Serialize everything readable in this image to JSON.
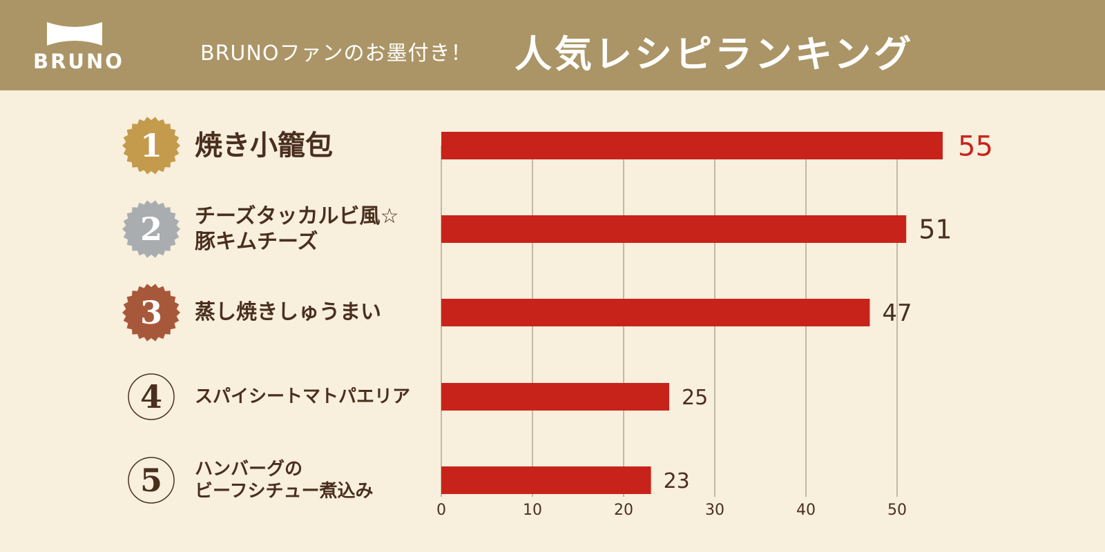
{
  "header": {
    "logo_text": "BRUNO",
    "subtitle": "BRUNOファンのお墨付き！",
    "title": "人気レシピランキング",
    "bg_color": "#ab9566"
  },
  "ranking": [
    {
      "rank": "1",
      "label_lines": [
        "焼き小籠包"
      ],
      "badge": "gold"
    },
    {
      "rank": "2",
      "label_lines": [
        "チーズタッカルビ風☆",
        "豚キムチーズ"
      ],
      "badge": "silver"
    },
    {
      "rank": "3",
      "label_lines": [
        "蒸し焼きしゅうまい"
      ],
      "badge": "bronze"
    },
    {
      "rank": "4",
      "label_lines": [
        "スパイシートマトパエリア"
      ],
      "badge": "outline"
    },
    {
      "rank": "5",
      "label_lines": [
        "ハンバーグの",
        "ビーフシチュー煮込み"
      ],
      "badge": "outline"
    }
  ],
  "chart_data": {
    "type": "bar",
    "orientation": "horizontal",
    "categories": [
      "焼き小籠包",
      "チーズタッカルビ風☆豚キムチーズ",
      "蒸し焼きしゅうまい",
      "スパイシートマトパエリア",
      "ハンバーグのビーフシチュー煮込み"
    ],
    "values": [
      55,
      51,
      47,
      25,
      23
    ],
    "xlim": [
      0,
      55
    ],
    "x_ticks": [
      "0",
      "10",
      "20",
      "30",
      "40",
      "50"
    ],
    "x_tick_values": [
      0,
      10,
      20,
      30,
      40,
      50
    ],
    "grid": true,
    "bar_color": "#c8231b",
    "highlight_label_color": "#c8231b",
    "label_color": "#4a2f1e",
    "badge_colors": {
      "gold": "#c49a4c",
      "silver": "#a9adb0",
      "bronze": "#a8583a",
      "outline": "#4a2f1e"
    }
  }
}
